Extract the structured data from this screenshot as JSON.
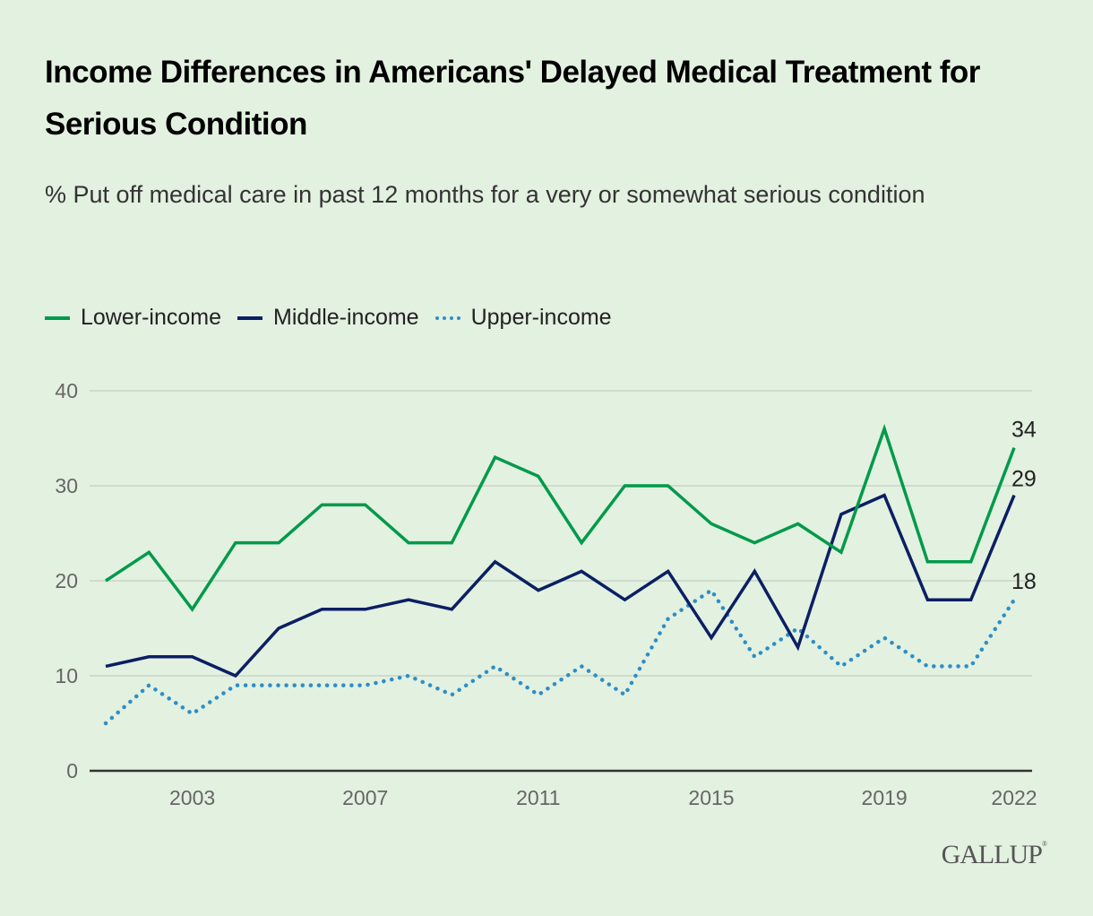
{
  "header": {
    "title": "Income Differences in Americans' Delayed Medical Treatment for Serious Condition",
    "subtitle": "% Put off medical care in past 12 months for a very or somewhat serious condition"
  },
  "legend": [
    {
      "label": "Lower-income",
      "color": "#009a4a",
      "style": "solid"
    },
    {
      "label": "Middle-income",
      "color": "#0b1f64",
      "style": "solid"
    },
    {
      "label": "Upper-income",
      "color": "#2e8ec7",
      "style": "dotted"
    }
  ],
  "logo": {
    "text": "GALLUP",
    "mark": "®"
  },
  "chart_data": {
    "type": "line",
    "title": "Income Differences in Americans' Delayed Medical Treatment for Serious Condition",
    "subtitle": "% Put off medical care in past 12 months for a very or somewhat serious condition",
    "xlabel": "",
    "ylabel": "",
    "x": [
      2001,
      2002,
      2003,
      2004,
      2005,
      2006,
      2007,
      2008,
      2009,
      2010,
      2011,
      2012,
      2013,
      2014,
      2015,
      2016,
      2017,
      2018,
      2019,
      2020,
      2021,
      2022
    ],
    "xlim": [
      2001,
      2022
    ],
    "ylim": [
      0,
      40
    ],
    "yticks": [
      0,
      10,
      20,
      30,
      40
    ],
    "xticks": [
      2003,
      2007,
      2011,
      2015,
      2019,
      2022
    ],
    "grid": true,
    "legend_position": "top-left",
    "series": [
      {
        "name": "Lower-income",
        "color": "#009a4a",
        "style": "solid",
        "values": [
          20,
          23,
          17,
          24,
          24,
          28,
          28,
          24,
          24,
          33,
          31,
          24,
          30,
          30,
          26,
          24,
          26,
          23,
          36,
          22,
          22,
          34
        ],
        "end_label": "34"
      },
      {
        "name": "Middle-income",
        "color": "#0b1f64",
        "style": "solid",
        "values": [
          11,
          12,
          12,
          10,
          15,
          17,
          17,
          18,
          17,
          22,
          19,
          21,
          18,
          21,
          14,
          21,
          13,
          27,
          29,
          18,
          18,
          29
        ],
        "end_label": "29"
      },
      {
        "name": "Upper-income",
        "color": "#2e8ec7",
        "style": "dotted",
        "values": [
          5,
          9,
          6,
          9,
          9,
          9,
          9,
          10,
          8,
          11,
          8,
          11,
          8,
          16,
          19,
          12,
          15,
          11,
          14,
          11,
          11,
          18
        ],
        "end_label": "18"
      }
    ]
  }
}
